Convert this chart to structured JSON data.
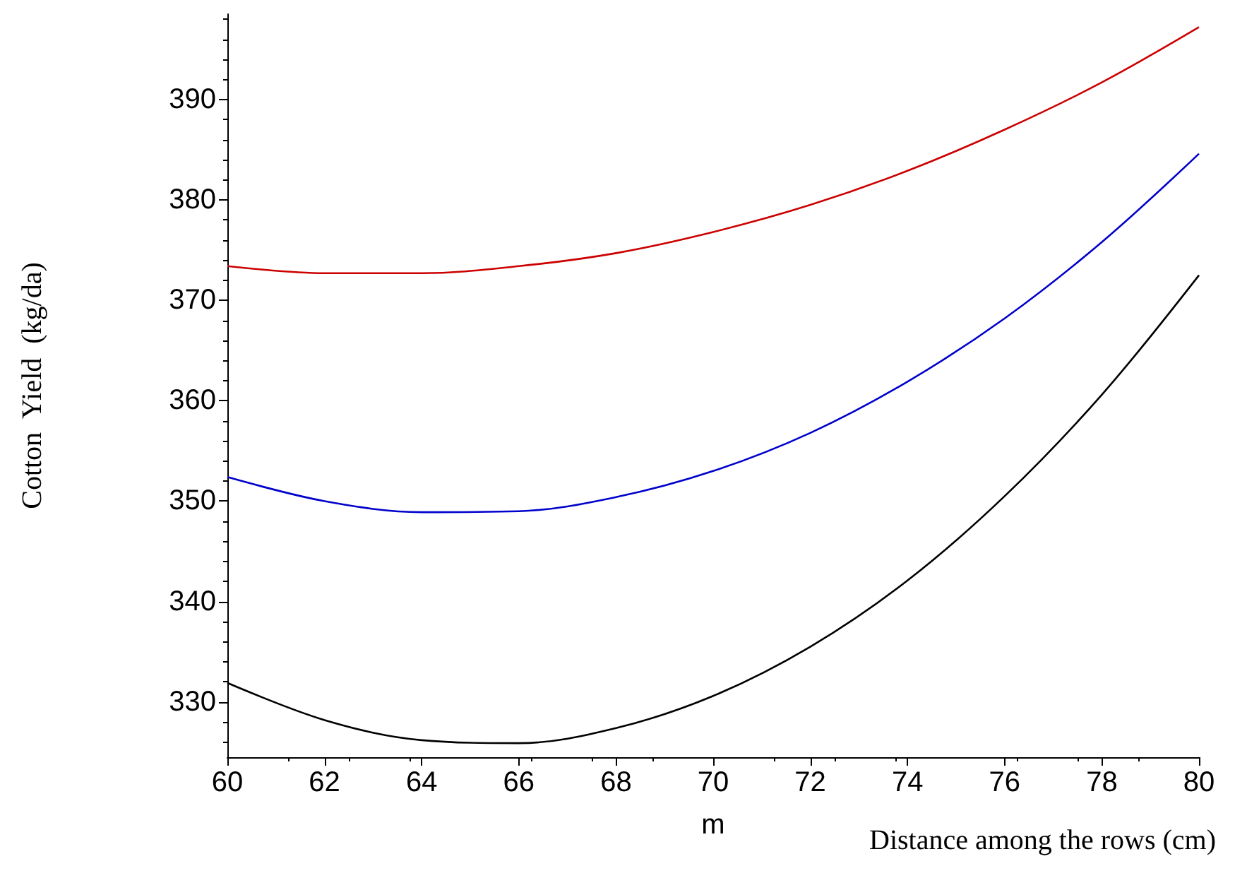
{
  "chart_data": {
    "type": "line",
    "xlabel": "m",
    "ylabel": "Cotton  Yield  (kg/da)",
    "annotations": [
      "Distance among the rows (cm)"
    ],
    "x": [
      60,
      62,
      64,
      66,
      68,
      70,
      72,
      74,
      76,
      78,
      80
    ],
    "series": [
      {
        "color": "#cc0000",
        "values": [
          373.4,
          372.7,
          372.7,
          373.4,
          374.7,
          376.8,
          379.5,
          382.9,
          387.0,
          391.7,
          397.2
        ]
      },
      {
        "color": "#0000cc",
        "values": [
          352.4,
          350.0,
          348.9,
          349.0,
          350.4,
          353.0,
          356.8,
          361.9,
          368.2,
          375.8,
          384.6
        ]
      },
      {
        "color": "#000000",
        "values": [
          331.9,
          328.2,
          326.2,
          325.9,
          327.4,
          330.6,
          335.5,
          342.1,
          350.5,
          360.6,
          372.5
        ]
      }
    ],
    "xlim": [
      60,
      80
    ],
    "xticks": [
      60,
      62,
      64,
      66,
      68,
      70,
      72,
      74,
      76,
      78,
      80
    ],
    "ylim": [
      324.5,
      398.5
    ],
    "yticks": [
      330,
      340,
      350,
      360,
      370,
      380,
      390
    ],
    "grid": false,
    "marker": "none",
    "line_style": "solid"
  }
}
